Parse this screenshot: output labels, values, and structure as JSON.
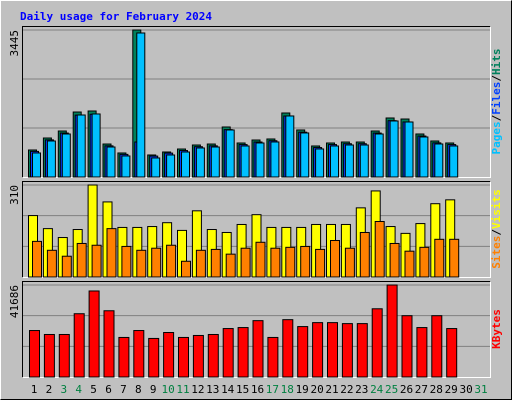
{
  "chart_data": [
    {
      "type": "bar",
      "title": "Daily usage for February 2024",
      "ylim": [
        0,
        3445
      ],
      "yticks": [
        3445
      ],
      "series": [
        {
          "name": "Hits",
          "color": "#00805c",
          "values": [
            633,
            914,
            1078,
            1523,
            1547,
            773,
            563,
            3445,
            516,
            586,
            656,
            750,
            773,
            1172,
            797,
            867,
            891,
            1500,
            1102,
            727,
            797,
            820,
            820,
            1078,
            1383,
            1359,
            1008,
            844,
            797,
            null,
            null
          ]
        },
        {
          "name": "Files",
          "color": "#0040ff",
          "values": [
            600,
            870,
            1030,
            1450,
            1470,
            730,
            530,
            820,
            490,
            560,
            620,
            710,
            730,
            1110,
            760,
            820,
            850,
            1430,
            1050,
            690,
            760,
            780,
            780,
            1030,
            1320,
            1290,
            960,
            800,
            760,
            null,
            null
          ]
        },
        {
          "name": "Pages",
          "color": "#00c0ff",
          "values": [
            563,
            844,
            1008,
            1453,
            1477,
            703,
            493,
            3375,
            446,
            516,
            586,
            680,
            703,
            1102,
            727,
            797,
            821,
            1430,
            1032,
            657,
            727,
            750,
            750,
            1008,
            1313,
            1289,
            938,
            774,
            727,
            null,
            null
          ]
        }
      ]
    },
    {
      "type": "bar",
      "ylim": [
        0,
        310
      ],
      "yticks": [
        310
      ],
      "series": [
        {
          "name": "Visits",
          "color": "#ffff00",
          "values": [
            207,
            163,
            133,
            160,
            310,
            253,
            167,
            167,
            170,
            183,
            157,
            223,
            160,
            150,
            177,
            210,
            167,
            167,
            167,
            177,
            177,
            177,
            233,
            290,
            170,
            147,
            180,
            247,
            260,
            null,
            null
          ]
        },
        {
          "name": "Sites",
          "color": "#ff8000",
          "values": [
            120,
            90,
            70,
            113,
            107,
            163,
            103,
            90,
            97,
            107,
            53,
            90,
            93,
            77,
            97,
            117,
            97,
            100,
            103,
            93,
            123,
            97,
            150,
            187,
            113,
            87,
            100,
            127,
            127,
            null,
            null
          ]
        }
      ]
    },
    {
      "type": "bar",
      "ylim": [
        0,
        41686
      ],
      "yticks": [
        41686
      ],
      "categories": [
        "1",
        "2",
        "3",
        "4",
        "5",
        "6",
        "7",
        "8",
        "9",
        "10",
        "11",
        "12",
        "13",
        "14",
        "15",
        "16",
        "17",
        "18",
        "19",
        "20",
        "21",
        "22",
        "23",
        "24",
        "25",
        "26",
        "27",
        "28",
        "29",
        "30",
        "31"
      ],
      "category_colors": [
        "#000000",
        "#000000",
        "#008040",
        "#008040",
        "#000000",
        "#000000",
        "#000000",
        "#000000",
        "#000000",
        "#008040",
        "#008040",
        "#000000",
        "#000000",
        "#000000",
        "#000000",
        "#000000",
        "#008040",
        "#008040",
        "#000000",
        "#000000",
        "#000000",
        "#000000",
        "#000000",
        "#008040",
        "#008040",
        "#000000",
        "#000000",
        "#000000",
        "#000000",
        "#000000",
        "#008040"
      ],
      "series": [
        {
          "name": "KBytes",
          "color": "#ff0000",
          "values": [
            21056,
            19264,
            19264,
            28672,
            38976,
            30016,
            17920,
            21056,
            17472,
            20160,
            17920,
            18816,
            19264,
            21952,
            22400,
            25536,
            17920,
            25984,
            22848,
            24640,
            24640,
            24192,
            24192,
            30912,
            41686,
            27776,
            22400,
            27776,
            21952,
            null,
            null
          ]
        }
      ]
    }
  ]
}
